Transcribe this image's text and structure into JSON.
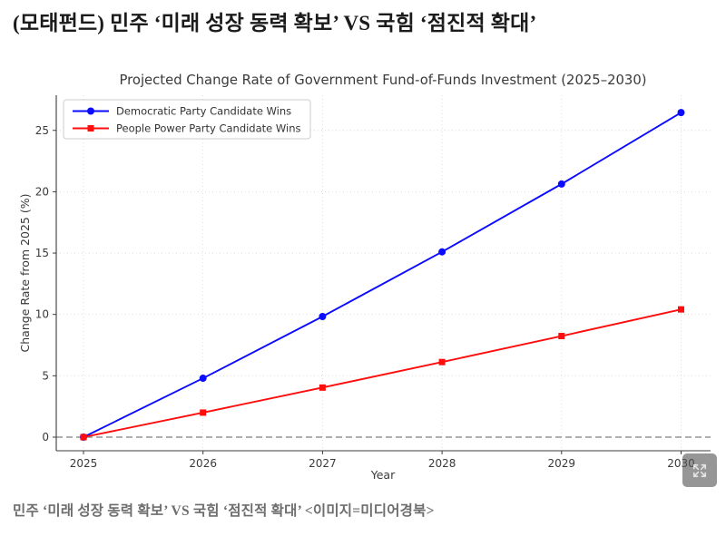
{
  "page": {
    "background_color": "#ffffff"
  },
  "header": {
    "title": "(모태펀드) 민주 ‘미래 성장 동력 확보’ VS 국힘 ‘점진적 확대’"
  },
  "caption": {
    "text": "민주 ‘미래 성장 동력 확보’ VS 국힘 ‘점진적 확대’ <이미지=미디어경북>"
  },
  "figure": {
    "expand_button_icon": "expand-arrows-icon"
  },
  "chart_data": {
    "type": "line",
    "title": "Projected Change Rate of Government Fund-of-Funds Investment (2025–2030)",
    "xlabel": "Year",
    "ylabel": "Change Rate from 2025 (%)",
    "x": [
      2025,
      2026,
      2027,
      2028,
      2029,
      2030
    ],
    "xticks": [
      2025,
      2026,
      2027,
      2028,
      2029,
      2030
    ],
    "yticks": [
      0,
      5,
      10,
      15,
      20,
      25
    ],
    "xlim": [
      2024.78,
      2030.25
    ],
    "ylim": [
      -1.1,
      27.9
    ],
    "grid": true,
    "grid_style": "dotted",
    "zero_line": {
      "value": 0,
      "style": "dashed",
      "color": "#7f7f7f"
    },
    "legend_position": "upper left",
    "series": [
      {
        "name": "Democratic Party Candidate Wins",
        "color": "#0b0bff",
        "marker": "circle",
        "values": [
          0,
          4.8,
          9.83,
          15.1,
          20.63,
          26.45
        ]
      },
      {
        "name": "People Power Party Candidate Wins",
        "color": "#ff0d0d",
        "marker": "square",
        "values": [
          0,
          2.0,
          4.04,
          6.12,
          8.24,
          10.41
        ]
      }
    ],
    "text_color": "#3a3a3a",
    "spine_color": "#3c3c3c",
    "grid_color": "#d9d9d9"
  }
}
